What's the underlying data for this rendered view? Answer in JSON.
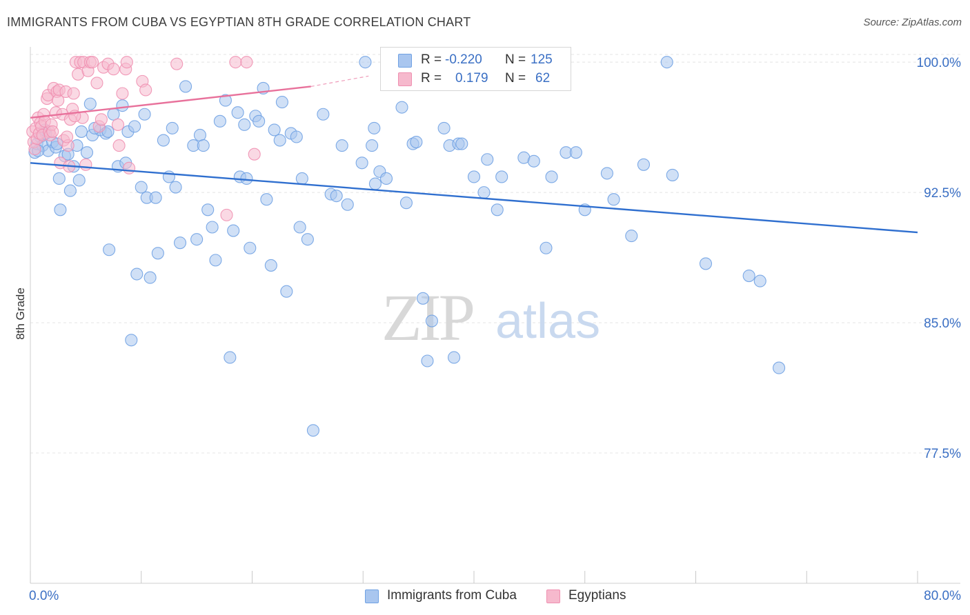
{
  "header": {
    "title": "IMMIGRANTS FROM CUBA VS EGYPTIAN 8TH GRADE CORRELATION CHART",
    "source": "Source: ZipAtlas.com"
  },
  "watermark": {
    "zip": "ZIP",
    "atlas": "atlas"
  },
  "legend": {
    "r_label": "R =",
    "n_label": "N =",
    "rows": [
      {
        "r": "-0.220",
        "n": "125",
        "color": "#a9c6ef"
      },
      {
        "r": "0.179",
        "n": "62",
        "color": "#f6b9cd"
      }
    ]
  },
  "chart_data": {
    "type": "scatter",
    "title": "IMMIGRANTS FROM CUBA VS EGYPTIAN 8TH GRADE CORRELATION CHART",
    "xlabel": "",
    "ylabel": "8th Grade",
    "xlim": [
      0,
      80
    ],
    "ylim": [
      70.0,
      100.8
    ],
    "x_tick_labels": [
      "0.0%",
      "80.0%"
    ],
    "y_ticks": [
      100.0,
      92.5,
      85.0,
      77.5
    ],
    "y_tick_labels": [
      "100.0%",
      "92.5%",
      "85.0%",
      "77.5%"
    ],
    "grid": true,
    "legend_position": "bottom-center",
    "series": [
      {
        "name": "Immigrants from Cuba",
        "color": "#6fa1e3",
        "fill": "#a9c6ef",
        "trend": {
          "x": [
            0,
            80
          ],
          "y": [
            94.2,
            90.2
          ],
          "color": "#2f6fcf"
        },
        "points": [
          [
            0.4,
            94.8
          ],
          [
            0.6,
            95.3
          ],
          [
            0.9,
            95.7
          ],
          [
            1.1,
            95.2
          ],
          [
            1.4,
            95.9
          ],
          [
            1.6,
            94.9
          ],
          [
            2.0,
            95.4
          ],
          [
            2.3,
            95.1
          ],
          [
            2.6,
            93.3
          ],
          [
            2.7,
            91.5
          ],
          [
            3.1,
            94.6
          ],
          [
            3.4,
            94.7
          ],
          [
            3.6,
            92.6
          ],
          [
            3.9,
            94.0
          ],
          [
            4.2,
            95.2
          ],
          [
            4.4,
            93.2
          ],
          [
            4.6,
            96.0
          ],
          [
            5.1,
            94.8
          ],
          [
            5.4,
            97.6
          ],
          [
            5.6,
            95.8
          ],
          [
            6.3,
            96.1
          ],
          [
            6.8,
            95.9
          ],
          [
            7.1,
            89.2
          ],
          [
            7.5,
            97.0
          ],
          [
            7.9,
            94.0
          ],
          [
            8.3,
            97.5
          ],
          [
            8.6,
            94.2
          ],
          [
            8.8,
            96.0
          ],
          [
            9.1,
            84.0
          ],
          [
            9.4,
            96.3
          ],
          [
            9.6,
            87.8
          ],
          [
            10.0,
            92.8
          ],
          [
            10.3,
            97.0
          ],
          [
            10.5,
            92.2
          ],
          [
            10.8,
            87.6
          ],
          [
            11.3,
            92.2
          ],
          [
            11.5,
            89.0
          ],
          [
            12.0,
            95.5
          ],
          [
            12.5,
            93.4
          ],
          [
            12.8,
            96.2
          ],
          [
            13.1,
            92.8
          ],
          [
            13.5,
            89.6
          ],
          [
            14.0,
            98.6
          ],
          [
            14.7,
            95.2
          ],
          [
            15.0,
            89.8
          ],
          [
            15.3,
            95.8
          ],
          [
            15.6,
            95.2
          ],
          [
            16.0,
            91.5
          ],
          [
            16.4,
            90.5
          ],
          [
            16.7,
            88.6
          ],
          [
            17.1,
            96.6
          ],
          [
            17.6,
            97.8
          ],
          [
            18.0,
            83.0
          ],
          [
            18.3,
            90.3
          ],
          [
            18.7,
            97.1
          ],
          [
            18.9,
            93.4
          ],
          [
            19.3,
            96.4
          ],
          [
            19.5,
            93.3
          ],
          [
            19.8,
            89.3
          ],
          [
            20.3,
            96.9
          ],
          [
            20.6,
            96.6
          ],
          [
            21.0,
            98.5
          ],
          [
            21.3,
            92.1
          ],
          [
            21.7,
            88.3
          ],
          [
            22.0,
            96.1
          ],
          [
            22.5,
            95.5
          ],
          [
            22.7,
            97.7
          ],
          [
            23.1,
            86.8
          ],
          [
            23.5,
            95.9
          ],
          [
            24.0,
            95.7
          ],
          [
            24.3,
            90.5
          ],
          [
            24.5,
            93.3
          ],
          [
            25.0,
            89.8
          ],
          [
            25.5,
            78.8
          ],
          [
            26.4,
            97.0
          ],
          [
            27.1,
            92.4
          ],
          [
            27.6,
            92.3
          ],
          [
            28.1,
            95.2
          ],
          [
            28.6,
            91.8
          ],
          [
            29.9,
            94.2
          ],
          [
            30.2,
            100.0
          ],
          [
            30.8,
            95.2
          ],
          [
            31.0,
            96.2
          ],
          [
            31.1,
            93.0
          ],
          [
            31.5,
            93.7
          ],
          [
            32.1,
            93.3
          ],
          [
            33.5,
            97.4
          ],
          [
            33.9,
            91.9
          ],
          [
            34.5,
            95.3
          ],
          [
            34.8,
            95.4
          ],
          [
            35.4,
            86.4
          ],
          [
            35.8,
            82.8
          ],
          [
            36.2,
            85.1
          ],
          [
            37.3,
            96.2
          ],
          [
            37.8,
            95.2
          ],
          [
            38.2,
            83.0
          ],
          [
            38.6,
            95.3
          ],
          [
            38.9,
            95.3
          ],
          [
            40.0,
            93.4
          ],
          [
            40.9,
            92.5
          ],
          [
            41.2,
            94.4
          ],
          [
            42.1,
            91.5
          ],
          [
            42.5,
            93.4
          ],
          [
            44.5,
            94.5
          ],
          [
            45.4,
            94.3
          ],
          [
            46.5,
            89.3
          ],
          [
            47.0,
            93.4
          ],
          [
            48.3,
            94.8
          ],
          [
            49.2,
            94.8
          ],
          [
            50.0,
            91.5
          ],
          [
            52.0,
            93.6
          ],
          [
            52.6,
            92.1
          ],
          [
            54.2,
            90.0
          ],
          [
            55.3,
            94.1
          ],
          [
            57.4,
            100.0
          ],
          [
            57.9,
            93.5
          ],
          [
            60.9,
            88.4
          ],
          [
            64.8,
            87.7
          ],
          [
            65.8,
            87.4
          ],
          [
            67.5,
            82.4
          ],
          [
            0.7,
            94.9
          ],
          [
            1.3,
            96.1
          ],
          [
            2.4,
            95.3
          ],
          [
            5.8,
            96.2
          ],
          [
            7.0,
            96.0
          ]
        ]
      },
      {
        "name": "Egyptians",
        "color": "#ef8fb0",
        "fill": "#f6b9cd",
        "trend": {
          "x": [
            0,
            25.3
          ],
          "y": [
            96.8,
            98.6
          ],
          "dashed_to": [
            30.5,
            99.2
          ],
          "color": "#e8719b"
        },
        "points": [
          [
            0.2,
            96.0
          ],
          [
            0.3,
            95.4
          ],
          [
            0.4,
            95.0
          ],
          [
            0.5,
            96.2
          ],
          [
            0.6,
            95.6
          ],
          [
            0.7,
            96.8
          ],
          [
            0.8,
            95.9
          ],
          [
            0.9,
            96.5
          ],
          [
            1.0,
            96.3
          ],
          [
            1.1,
            95.8
          ],
          [
            1.2,
            97.0
          ],
          [
            1.3,
            96.6
          ],
          [
            1.5,
            97.9
          ],
          [
            1.6,
            98.1
          ],
          [
            1.7,
            96.0
          ],
          [
            1.8,
            95.8
          ],
          [
            1.9,
            96.4
          ],
          [
            2.1,
            98.5
          ],
          [
            2.3,
            97.1
          ],
          [
            2.4,
            98.3
          ],
          [
            2.5,
            97.8
          ],
          [
            2.6,
            98.4
          ],
          [
            2.7,
            94.2
          ],
          [
            2.9,
            97.0
          ],
          [
            3.0,
            95.5
          ],
          [
            3.2,
            98.3
          ],
          [
            3.4,
            95.2
          ],
          [
            3.5,
            94.0
          ],
          [
            3.6,
            96.7
          ],
          [
            3.8,
            97.3
          ],
          [
            3.9,
            98.2
          ],
          [
            4.1,
            100.0
          ],
          [
            4.3,
            99.3
          ],
          [
            4.5,
            100.0
          ],
          [
            4.7,
            96.8
          ],
          [
            4.8,
            100.0
          ],
          [
            5.0,
            94.1
          ],
          [
            5.2,
            99.5
          ],
          [
            5.4,
            100.0
          ],
          [
            5.6,
            100.0
          ],
          [
            6.0,
            98.8
          ],
          [
            6.2,
            96.3
          ],
          [
            6.4,
            96.7
          ],
          [
            6.6,
            99.7
          ],
          [
            7.0,
            99.9
          ],
          [
            7.5,
            99.6
          ],
          [
            7.9,
            96.4
          ],
          [
            8.0,
            95.2
          ],
          [
            8.3,
            98.2
          ],
          [
            8.6,
            99.6
          ],
          [
            8.7,
            100.0
          ],
          [
            8.9,
            93.9
          ],
          [
            10.1,
            98.9
          ],
          [
            10.4,
            98.4
          ],
          [
            13.2,
            99.9
          ],
          [
            17.7,
            91.2
          ],
          [
            18.5,
            100.0
          ],
          [
            19.5,
            100.0
          ],
          [
            20.2,
            94.7
          ],
          [
            3.3,
            95.7
          ],
          [
            2.0,
            96.0
          ],
          [
            4.0,
            96.9
          ]
        ]
      }
    ]
  },
  "bottom_legend": [
    "Immigrants from Cuba",
    "Egyptians"
  ]
}
